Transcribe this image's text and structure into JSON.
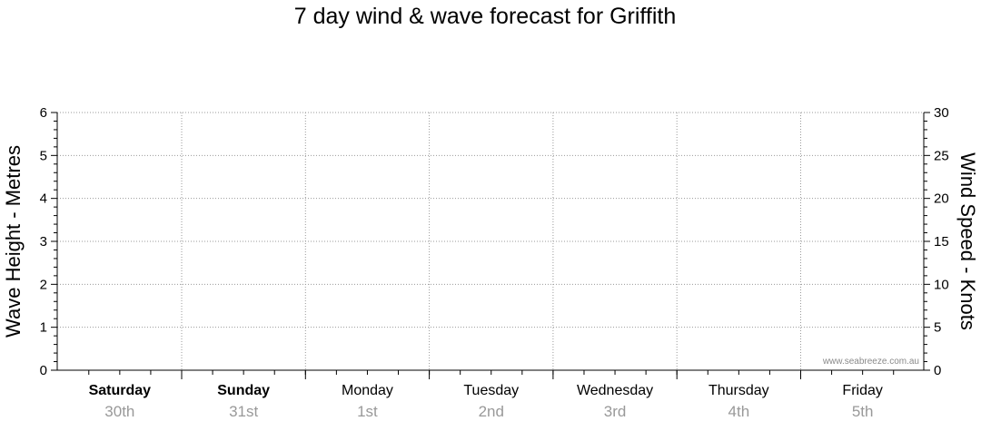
{
  "chart_data": {
    "type": "line",
    "title": "7 day wind & wave forecast for Griffith",
    "ylabel_left": "Wave Height - Metres",
    "ylabel_right": "Wind Speed - Knots",
    "y_left": {
      "ticks": [
        "0",
        "1",
        "2",
        "3",
        "4",
        "5",
        "6"
      ],
      "min": 0,
      "max": 6
    },
    "y_right": {
      "ticks": [
        "0",
        "5",
        "10",
        "15",
        "20",
        "25",
        "30"
      ],
      "min": 0,
      "max": 30
    },
    "days": [
      {
        "name": "Saturday",
        "date": "30th",
        "bold": true
      },
      {
        "name": "Sunday",
        "date": "31st",
        "bold": true
      },
      {
        "name": "Monday",
        "date": "1st",
        "bold": false
      },
      {
        "name": "Tuesday",
        "date": "2nd",
        "bold": false
      },
      {
        "name": "Wednesday",
        "date": "3rd",
        "bold": false
      },
      {
        "name": "Thursday",
        "date": "4th",
        "bold": false
      },
      {
        "name": "Friday",
        "date": "5th",
        "bold": false
      }
    ],
    "series": [],
    "grid": true,
    "watermark": "www.seabreeze.com.au"
  }
}
